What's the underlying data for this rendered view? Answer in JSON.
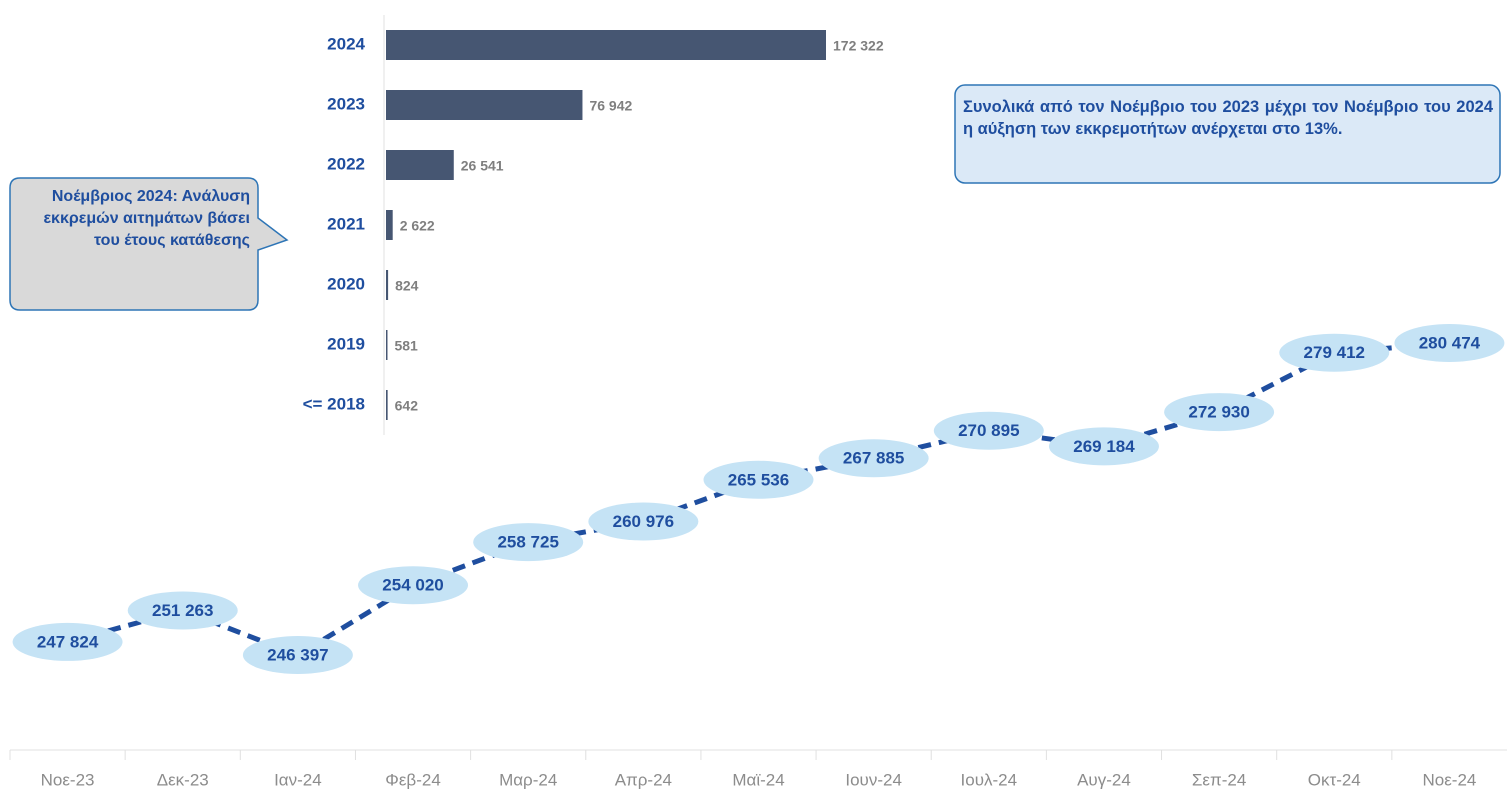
{
  "chart_data": [
    {
      "type": "bar",
      "orientation": "horizontal",
      "annotation": "Νοέμβριος 2024: Ανάλυση εκκρεμών αιτημάτων βάσει του έτους κατάθεσης",
      "categories": [
        "2024",
        "2023",
        "2022",
        "2021",
        "2020",
        "2019",
        "<= 2018"
      ],
      "values": [
        172322,
        76942,
        26541,
        2622,
        824,
        581,
        642
      ],
      "value_labels": [
        "172 322",
        "76 942",
        "26 541",
        "2 622",
        "824",
        "581",
        "642"
      ],
      "color": "#465672"
    },
    {
      "type": "line",
      "annotation": "Συνολικά από τον Νοέμβριο του 2023 μέχρι τον Νοέμβριο του 2024 η αύξηση των εκκρεμοτήτων ανέρχεται στο 13%.",
      "categories": [
        "Νοε-23",
        "Δεκ-23",
        "Ιαν-24",
        "Φεβ-24",
        "Μαρ-24",
        "Απρ-24",
        "Μαϊ-24",
        "Ιουν-24",
        "Ιουλ-24",
        "Αυγ-24",
        "Σεπ-24",
        "Οκτ-24",
        "Νοε-24"
      ],
      "values": [
        247824,
        251263,
        246397,
        254020,
        258725,
        260976,
        265536,
        267885,
        270895,
        269184,
        272930,
        279412,
        280474
      ],
      "value_labels": [
        "247 824",
        "251 263",
        "246 397",
        "254 020",
        "258 725",
        "260 976",
        "265 536",
        "267 885",
        "270 895",
        "269 184",
        "272 930",
        "279 412",
        "280 474"
      ],
      "color": "#1f4e9f",
      "line_style": "dashed"
    }
  ]
}
